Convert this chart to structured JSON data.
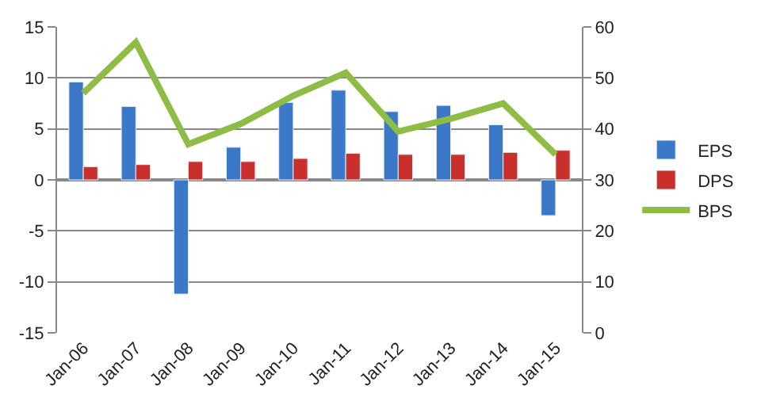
{
  "chart_data": {
    "type": "bar",
    "categories": [
      "Jan-06",
      "Jan-07",
      "Jan-08",
      "Jan-09",
      "Jan-10",
      "Jan-11",
      "Jan-12",
      "Jan-13",
      "Jan-14",
      "Jan-15"
    ],
    "series": [
      {
        "name": "EPS",
        "color": "#3b78c7",
        "values": [
          9.6,
          7.2,
          -11.2,
          3.2,
          7.6,
          8.8,
          6.7,
          7.3,
          5.4,
          -3.5
        ]
      },
      {
        "name": "DPS",
        "color": "#c9302c",
        "values": [
          1.3,
          1.5,
          1.8,
          1.8,
          2.1,
          2.6,
          2.5,
          2.5,
          2.7,
          2.9
        ]
      },
      {
        "name": "BPS",
        "color": "#8fbc45",
        "type": "line",
        "axis": "y2",
        "values": [
          47,
          57,
          37,
          41,
          46.5,
          51,
          39.5,
          42,
          45,
          35
        ]
      }
    ],
    "ylim": [
      -15,
      15
    ],
    "yticks": [
      -15,
      -10,
      -5,
      0,
      5,
      10,
      15
    ],
    "y2lim": [
      0,
      60
    ],
    "y2ticks": [
      0,
      10,
      20,
      30,
      40,
      50,
      60
    ],
    "grid": "y",
    "legend": "right",
    "marker": "none"
  }
}
